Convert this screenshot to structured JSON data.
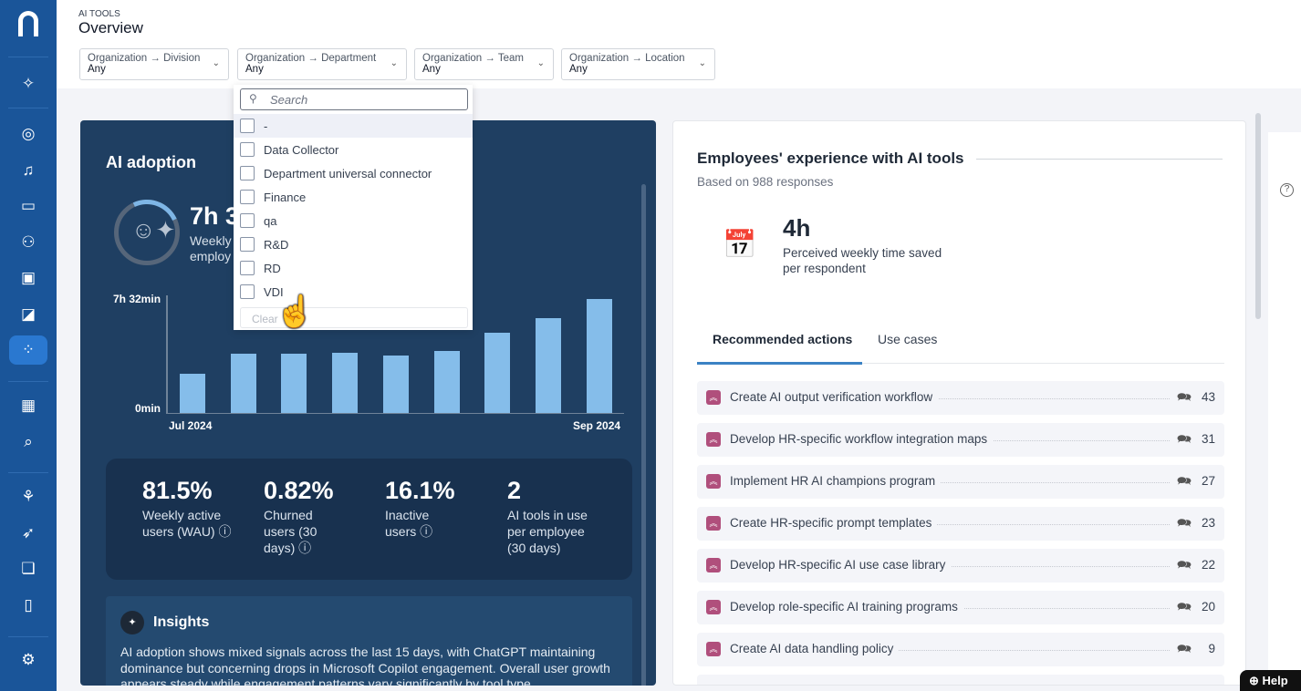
{
  "sidebar": {
    "items": [
      {
        "icon": "ai-search-icon"
      },
      {
        "icon": "compass-icon"
      },
      {
        "icon": "bell-icon"
      },
      {
        "icon": "dashboard-chart-icon"
      },
      {
        "icon": "people-icon"
      },
      {
        "icon": "devices-icon"
      },
      {
        "icon": "edit-board-icon"
      },
      {
        "icon": "ai-tools-icon",
        "active": true
      },
      {
        "icon": "grid-icon"
      },
      {
        "icon": "scan-search-icon"
      },
      {
        "icon": "workflow-icon"
      },
      {
        "icon": "rocket-icon"
      },
      {
        "icon": "chat-icon"
      },
      {
        "icon": "book-icon"
      },
      {
        "icon": "gear-icon"
      }
    ]
  },
  "header": {
    "eyebrow": "AI TOOLS",
    "title": "Overview",
    "filters": [
      {
        "label": "Organization → Division",
        "value": "Any"
      },
      {
        "label": "Organization → Department",
        "value": "Any"
      },
      {
        "label": "Organization → Team",
        "value": "Any"
      },
      {
        "label": "Organization → Location",
        "value": "Any"
      }
    ]
  },
  "dropdown": {
    "search_placeholder": "Search",
    "options": [
      "-",
      "Data Collector",
      "Department universal connector",
      "Finance",
      "qa",
      "R&D",
      "RD",
      "VDI"
    ],
    "clear_label": "Clear"
  },
  "adoption": {
    "title": "AI adoption",
    "big_value": "7h 3",
    "sub": "Weekly",
    "sub2": "employ",
    "chart_data": {
      "type": "bar",
      "categories": [
        "Jul 2024",
        "",
        "",
        "",
        "",
        "",
        "",
        "",
        "Sep 2024"
      ],
      "values_minutes": [
        155,
        235,
        235,
        239,
        228,
        246,
        318,
        376,
        452
      ],
      "ytick_labels": [
        "7h 32min",
        "0min"
      ],
      "ylim_minutes": [
        0,
        452
      ],
      "xtick_labels": [
        "Jul 2024",
        "Sep 2024"
      ],
      "bar_color": "#85bdea"
    },
    "stats": [
      {
        "value": "81.5%",
        "label": "Weekly active users (WAU)",
        "info": true
      },
      {
        "value": "0.82%",
        "label": "Churned users (30 days)",
        "info": true
      },
      {
        "value": "16.1%",
        "label": "Inactive users",
        "info": true
      },
      {
        "value": "2",
        "label": "AI tools in use per employee (30 days)",
        "info": false
      }
    ],
    "insights": {
      "title": "Insights",
      "text": "AI adoption shows mixed signals across the last 15 days, with ChatGPT maintaining dominance but concerning drops in Microsoft Copilot engagement. Overall user growth appears steady while engagement patterns vary significantly by tool type."
    }
  },
  "experience": {
    "title": "Employees' experience with AI tools",
    "subtitle": "Based on 988 responses",
    "time_value": "4h",
    "time_label": "Perceived weekly time saved per respondent",
    "tabs": [
      {
        "label": "Recommended actions",
        "active": true
      },
      {
        "label": "Use cases"
      }
    ],
    "actions": [
      {
        "label": "Create AI output verification workflow",
        "count": "43"
      },
      {
        "label": "Develop HR-specific workflow integration maps",
        "count": "31"
      },
      {
        "label": "Implement HR AI champions program",
        "count": "27"
      },
      {
        "label": "Create HR-specific prompt templates",
        "count": "23"
      },
      {
        "label": "Develop HR-specific AI use case library",
        "count": "22"
      },
      {
        "label": "Develop role-specific AI training programs",
        "count": "20"
      },
      {
        "label": "Create AI data handling policy",
        "count": "9"
      }
    ]
  },
  "help": {
    "label": "Help"
  },
  "colors": {
    "sidebar": "#1a5599",
    "adoption_card": "#1f3f62",
    "badge": "#b04f7c",
    "accent": "#3b82c4"
  }
}
